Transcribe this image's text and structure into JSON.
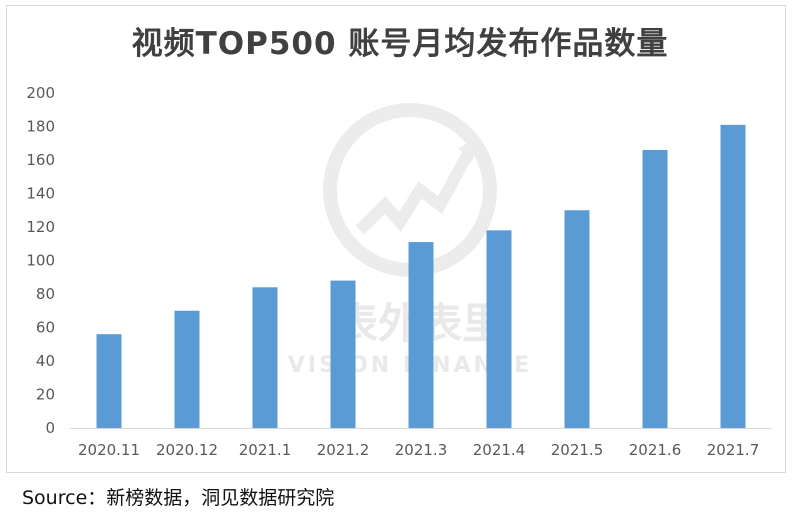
{
  "chart_data": {
    "type": "bar",
    "title": "视频TOP500 账号月均发布作品数量",
    "categories": [
      "2020.11",
      "2020.12",
      "2021.1",
      "2021.2",
      "2021.3",
      "2021.4",
      "2021.5",
      "2021.6",
      "2021.7"
    ],
    "values": [
      56,
      70,
      84,
      88,
      111,
      118,
      130,
      166,
      181
    ],
    "ylim": [
      0,
      200
    ],
    "yticks": [
      0,
      20,
      40,
      60,
      80,
      100,
      120,
      140,
      160,
      180,
      200
    ],
    "xlabel": "",
    "ylabel": "",
    "grid": false,
    "legend": "none",
    "bar_color": "#5b9bd5",
    "axis_color": "#d9d9d9"
  },
  "watermark": {
    "name_cn": "表外表里",
    "name_en": "VISION FINANCE",
    "color": "#e9e9e9"
  },
  "source": {
    "text": "Source：新榜数据，洞见数据研究院"
  }
}
